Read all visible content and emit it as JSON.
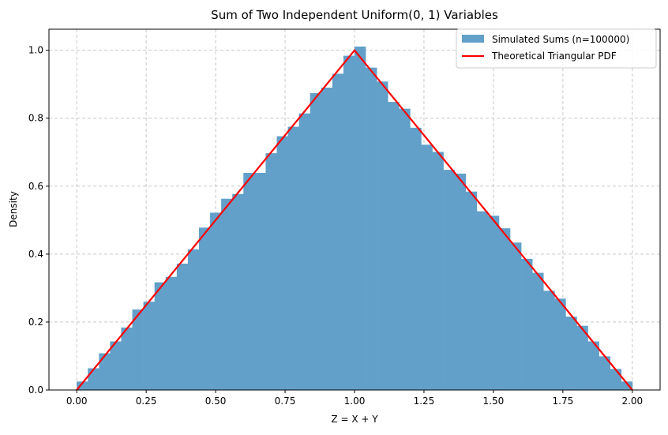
{
  "chart_data": {
    "type": "bar",
    "title": "Sum of Two Independent Uniform(0, 1) Variables",
    "xlabel": "Z = X + Y",
    "ylabel": "Density",
    "xlim": [
      -0.1,
      2.1
    ],
    "ylim": [
      0,
      1.062
    ],
    "xticks": [
      "0.00",
      "0.25",
      "0.50",
      "0.75",
      "1.00",
      "1.25",
      "1.50",
      "1.75",
      "2.00"
    ],
    "xtick_values": [
      0,
      0.25,
      0.5,
      0.75,
      1,
      1.25,
      1.5,
      1.75,
      2
    ],
    "yticks": [
      "0.0",
      "0.2",
      "0.4",
      "0.6",
      "0.8",
      "1.0"
    ],
    "ytick_values": [
      0,
      0.2,
      0.4,
      0.6,
      0.8,
      1.0
    ],
    "grid": true,
    "legend_placement": "upper-right",
    "histogram": {
      "name": "Simulated Sums (n=100000)",
      "color": "#62a0ca",
      "bin_start": 0,
      "bin_width": 0.04,
      "values": [
        0.025,
        0.064,
        0.108,
        0.143,
        0.184,
        0.237,
        0.26,
        0.317,
        0.333,
        0.372,
        0.414,
        0.478,
        0.522,
        0.563,
        0.577,
        0.639,
        0.639,
        0.697,
        0.747,
        0.775,
        0.814,
        0.874,
        0.89,
        0.931,
        0.984,
        1.011,
        0.949,
        0.908,
        0.848,
        0.828,
        0.772,
        0.722,
        0.701,
        0.648,
        0.637,
        0.584,
        0.526,
        0.513,
        0.476,
        0.434,
        0.386,
        0.345,
        0.292,
        0.269,
        0.216,
        0.189,
        0.143,
        0.099,
        0.062,
        0.025
      ]
    },
    "line": {
      "name": "Theoretical Triangular PDF",
      "color": "#ff0000",
      "x": [
        0,
        1,
        2
      ],
      "y": [
        0,
        1,
        0
      ]
    }
  }
}
